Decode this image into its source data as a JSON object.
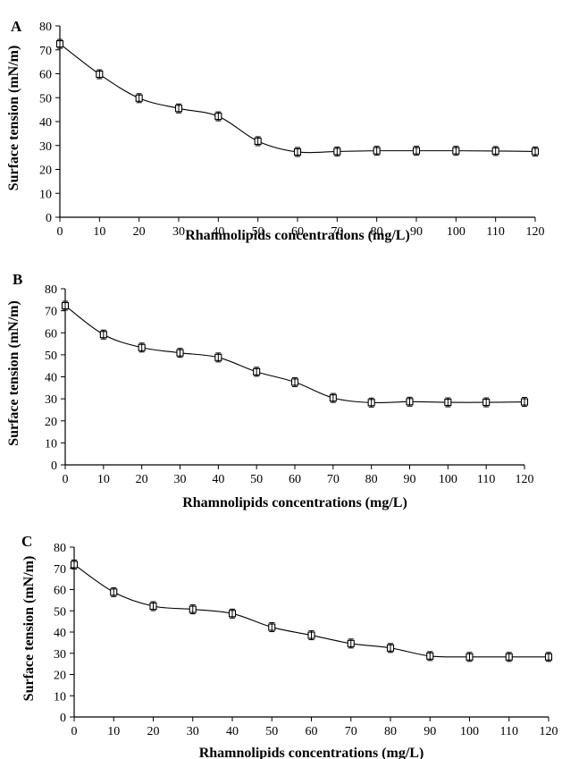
{
  "figure": {
    "xlabel": "Rhamnolipids concentrations (mg/L)",
    "ylabel": "Surface tension (mN/m)"
  },
  "chart_data": [
    {
      "type": "line",
      "panel": "A",
      "xlabel": "Rhamnolipids concentrations (mg/L)",
      "ylabel": "Surface tension (mN/m)",
      "xlim": [
        0,
        120
      ],
      "ylim": [
        0,
        80
      ],
      "xticks": [
        0,
        10,
        20,
        30,
        40,
        50,
        60,
        70,
        80,
        90,
        100,
        110,
        120
      ],
      "yticks": [
        0,
        10,
        20,
        30,
        40,
        50,
        60,
        70,
        80
      ],
      "grid": false,
      "marker": "square-with-error-bar",
      "x": [
        0,
        10,
        20,
        30,
        40,
        50,
        60,
        70,
        80,
        90,
        100,
        110,
        120
      ],
      "y": [
        72.5,
        59.8,
        49.8,
        45.5,
        42.2,
        31.8,
        27.3,
        27.5,
        27.8,
        27.8,
        27.8,
        27.7,
        27.5
      ]
    },
    {
      "type": "line",
      "panel": "B",
      "xlabel": "Rhamnolipids concentrations (mg/L)",
      "ylabel": "Surface tension (mN/m)",
      "xlim": [
        0,
        120
      ],
      "ylim": [
        0,
        80
      ],
      "xticks": [
        0,
        10,
        20,
        30,
        40,
        50,
        60,
        70,
        80,
        90,
        100,
        110,
        120
      ],
      "yticks": [
        0,
        10,
        20,
        30,
        40,
        50,
        60,
        70,
        80
      ],
      "grid": false,
      "marker": "square-with-error-bar",
      "x": [
        0,
        10,
        20,
        30,
        40,
        50,
        60,
        70,
        80,
        90,
        100,
        110,
        120
      ],
      "y": [
        72.3,
        59.2,
        53.3,
        50.9,
        48.8,
        42.3,
        37.6,
        30.4,
        28.3,
        28.7,
        28.4,
        28.4,
        28.6
      ]
    },
    {
      "type": "line",
      "panel": "C",
      "xlabel": "Rhamnolipids concentrations (mg/L)",
      "ylabel": "Surface tension (mN/m)",
      "xlim": [
        0,
        120
      ],
      "ylim": [
        0,
        80
      ],
      "xticks": [
        0,
        10,
        20,
        30,
        40,
        50,
        60,
        70,
        80,
        90,
        100,
        110,
        120
      ],
      "yticks": [
        0,
        10,
        20,
        30,
        40,
        50,
        60,
        70,
        80
      ],
      "grid": false,
      "marker": "square-with-error-bar",
      "x": [
        0,
        10,
        20,
        30,
        40,
        50,
        60,
        70,
        80,
        90,
        100,
        110,
        120
      ],
      "y": [
        71.8,
        58.8,
        52.2,
        50.7,
        48.7,
        42.3,
        38.5,
        34.6,
        32.5,
        28.7,
        28.3,
        28.3,
        28.3
      ]
    }
  ]
}
